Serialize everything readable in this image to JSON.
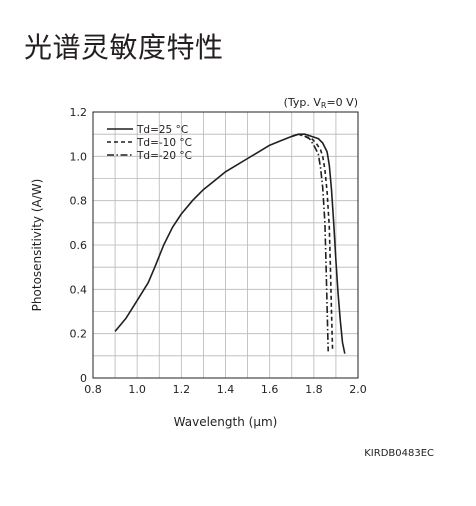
{
  "page": {
    "title": "光谱灵敏度特性"
  },
  "chart_data": {
    "type": "line",
    "title": "",
    "condition_note": "(Typ. V",
    "condition_sub": "R",
    "condition_rest": "=0 V)",
    "xlabel": "Wavelength (µm)",
    "ylabel": "Photosensitivity (A/W)",
    "xlim": [
      0.8,
      2.0
    ],
    "ylim": [
      0,
      1.2
    ],
    "xticks": [
      "0.8",
      "1.0",
      "1.2",
      "1.4",
      "1.6",
      "1.8",
      "2.0"
    ],
    "yticks": [
      "0",
      "0.2",
      "0.4",
      "0.6",
      "0.8",
      "1.0",
      "1.2"
    ],
    "grid": true,
    "legend_position": "top-left",
    "doc_code": "KIRDB0483EC",
    "series": [
      {
        "name": "Td=25 °C",
        "style": "solid",
        "x": [
          0.9,
          0.95,
          1.0,
          1.05,
          1.08,
          1.12,
          1.16,
          1.2,
          1.25,
          1.3,
          1.35,
          1.4,
          1.45,
          1.5,
          1.55,
          1.6,
          1.65,
          1.7,
          1.73,
          1.76,
          1.79,
          1.82,
          1.84,
          1.86,
          1.87,
          1.88,
          1.89,
          1.9,
          1.91,
          1.92,
          1.93,
          1.94
        ],
        "y": [
          0.21,
          0.27,
          0.35,
          0.43,
          0.5,
          0.6,
          0.68,
          0.74,
          0.8,
          0.85,
          0.89,
          0.93,
          0.96,
          0.99,
          1.02,
          1.05,
          1.07,
          1.09,
          1.1,
          1.1,
          1.09,
          1.08,
          1.06,
          1.02,
          0.96,
          0.85,
          0.7,
          0.53,
          0.38,
          0.26,
          0.16,
          0.11
        ]
      },
      {
        "name": "Td=-10 °C",
        "style": "dashed",
        "x": [
          1.7,
          1.73,
          1.76,
          1.79,
          1.81,
          1.83,
          1.84,
          1.85,
          1.86,
          1.87,
          1.875,
          1.88,
          1.885
        ],
        "y": [
          1.09,
          1.1,
          1.09,
          1.08,
          1.06,
          1.03,
          1.0,
          0.94,
          0.84,
          0.68,
          0.5,
          0.3,
          0.12
        ]
      },
      {
        "name": "Td=-20 °C",
        "style": "dashdot",
        "x": [
          1.7,
          1.73,
          1.76,
          1.78,
          1.8,
          1.82,
          1.83,
          1.84,
          1.85,
          1.855,
          1.86,
          1.865
        ],
        "y": [
          1.09,
          1.1,
          1.09,
          1.08,
          1.05,
          1.01,
          0.95,
          0.86,
          0.7,
          0.52,
          0.32,
          0.12
        ]
      }
    ]
  }
}
